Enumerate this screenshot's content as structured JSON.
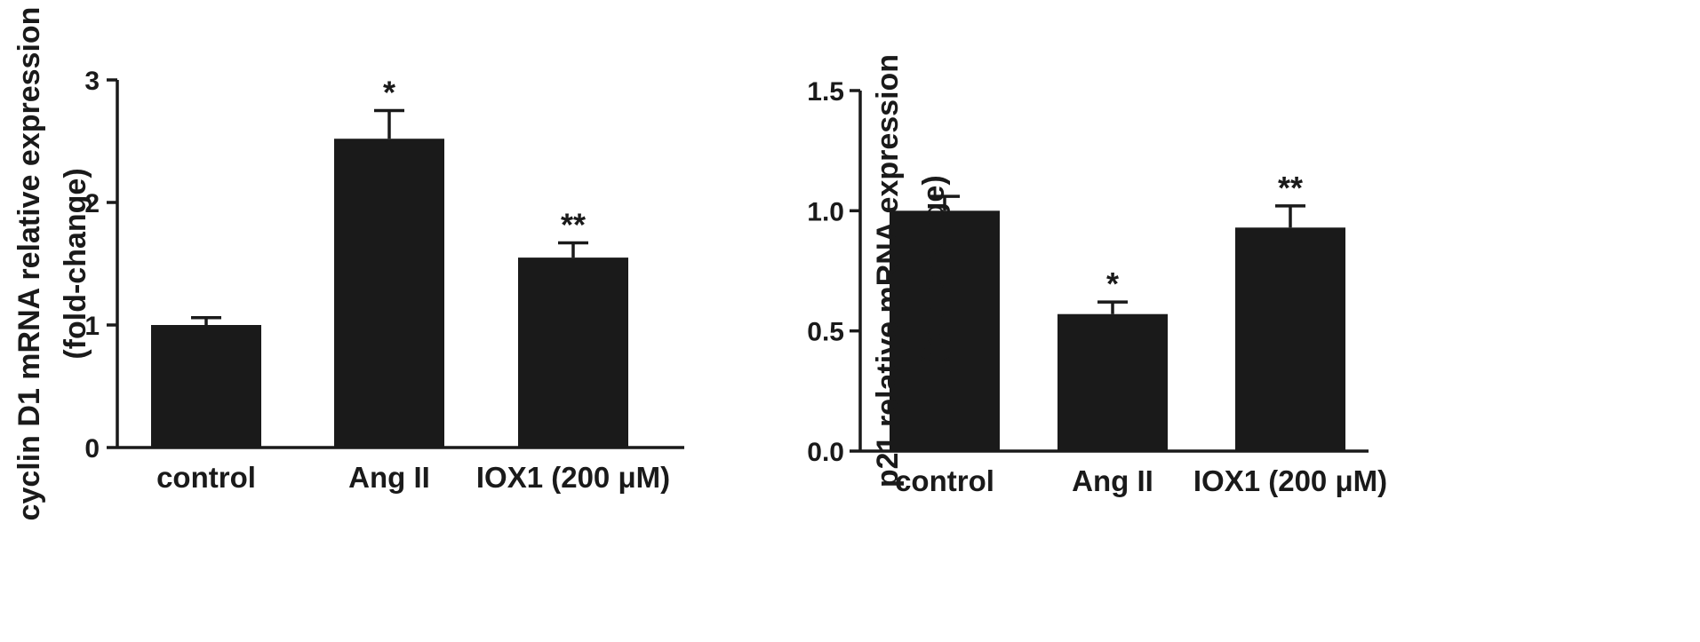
{
  "chart_data": [
    {
      "type": "bar",
      "categories": [
        "control",
        "Ang II",
        "IOX1 (200 μM)"
      ],
      "values": [
        1.0,
        2.52,
        1.55
      ],
      "errors": [
        0.06,
        0.23,
        0.12
      ],
      "annotations": [
        "",
        "*",
        "**"
      ],
      "ylabel_lines": [
        "cyclin D1 mRNA relative expression",
        "(fold-change)"
      ],
      "ylim": [
        0,
        3
      ],
      "yticks": [
        0,
        1,
        2,
        3
      ],
      "ytick_labels": [
        "0",
        "1",
        "2",
        "3"
      ],
      "bar_color": "#1a1a1a",
      "grid": false
    },
    {
      "type": "bar",
      "categories": [
        "control",
        "Ang II",
        "IOX1 (200 μM)"
      ],
      "values": [
        1.0,
        0.57,
        0.93
      ],
      "errors": [
        0.06,
        0.05,
        0.09
      ],
      "annotations": [
        "",
        "*",
        "**"
      ],
      "ylabel_lines": [
        "p21 relative mRNA expression",
        "(fold-change)"
      ],
      "ylim": [
        0,
        1.5
      ],
      "yticks": [
        0,
        0.5,
        1.0,
        1.5
      ],
      "ytick_labels": [
        "0.0",
        "0.5",
        "1.0",
        "1.5"
      ],
      "bar_color": "#1a1a1a",
      "grid": false
    }
  ]
}
